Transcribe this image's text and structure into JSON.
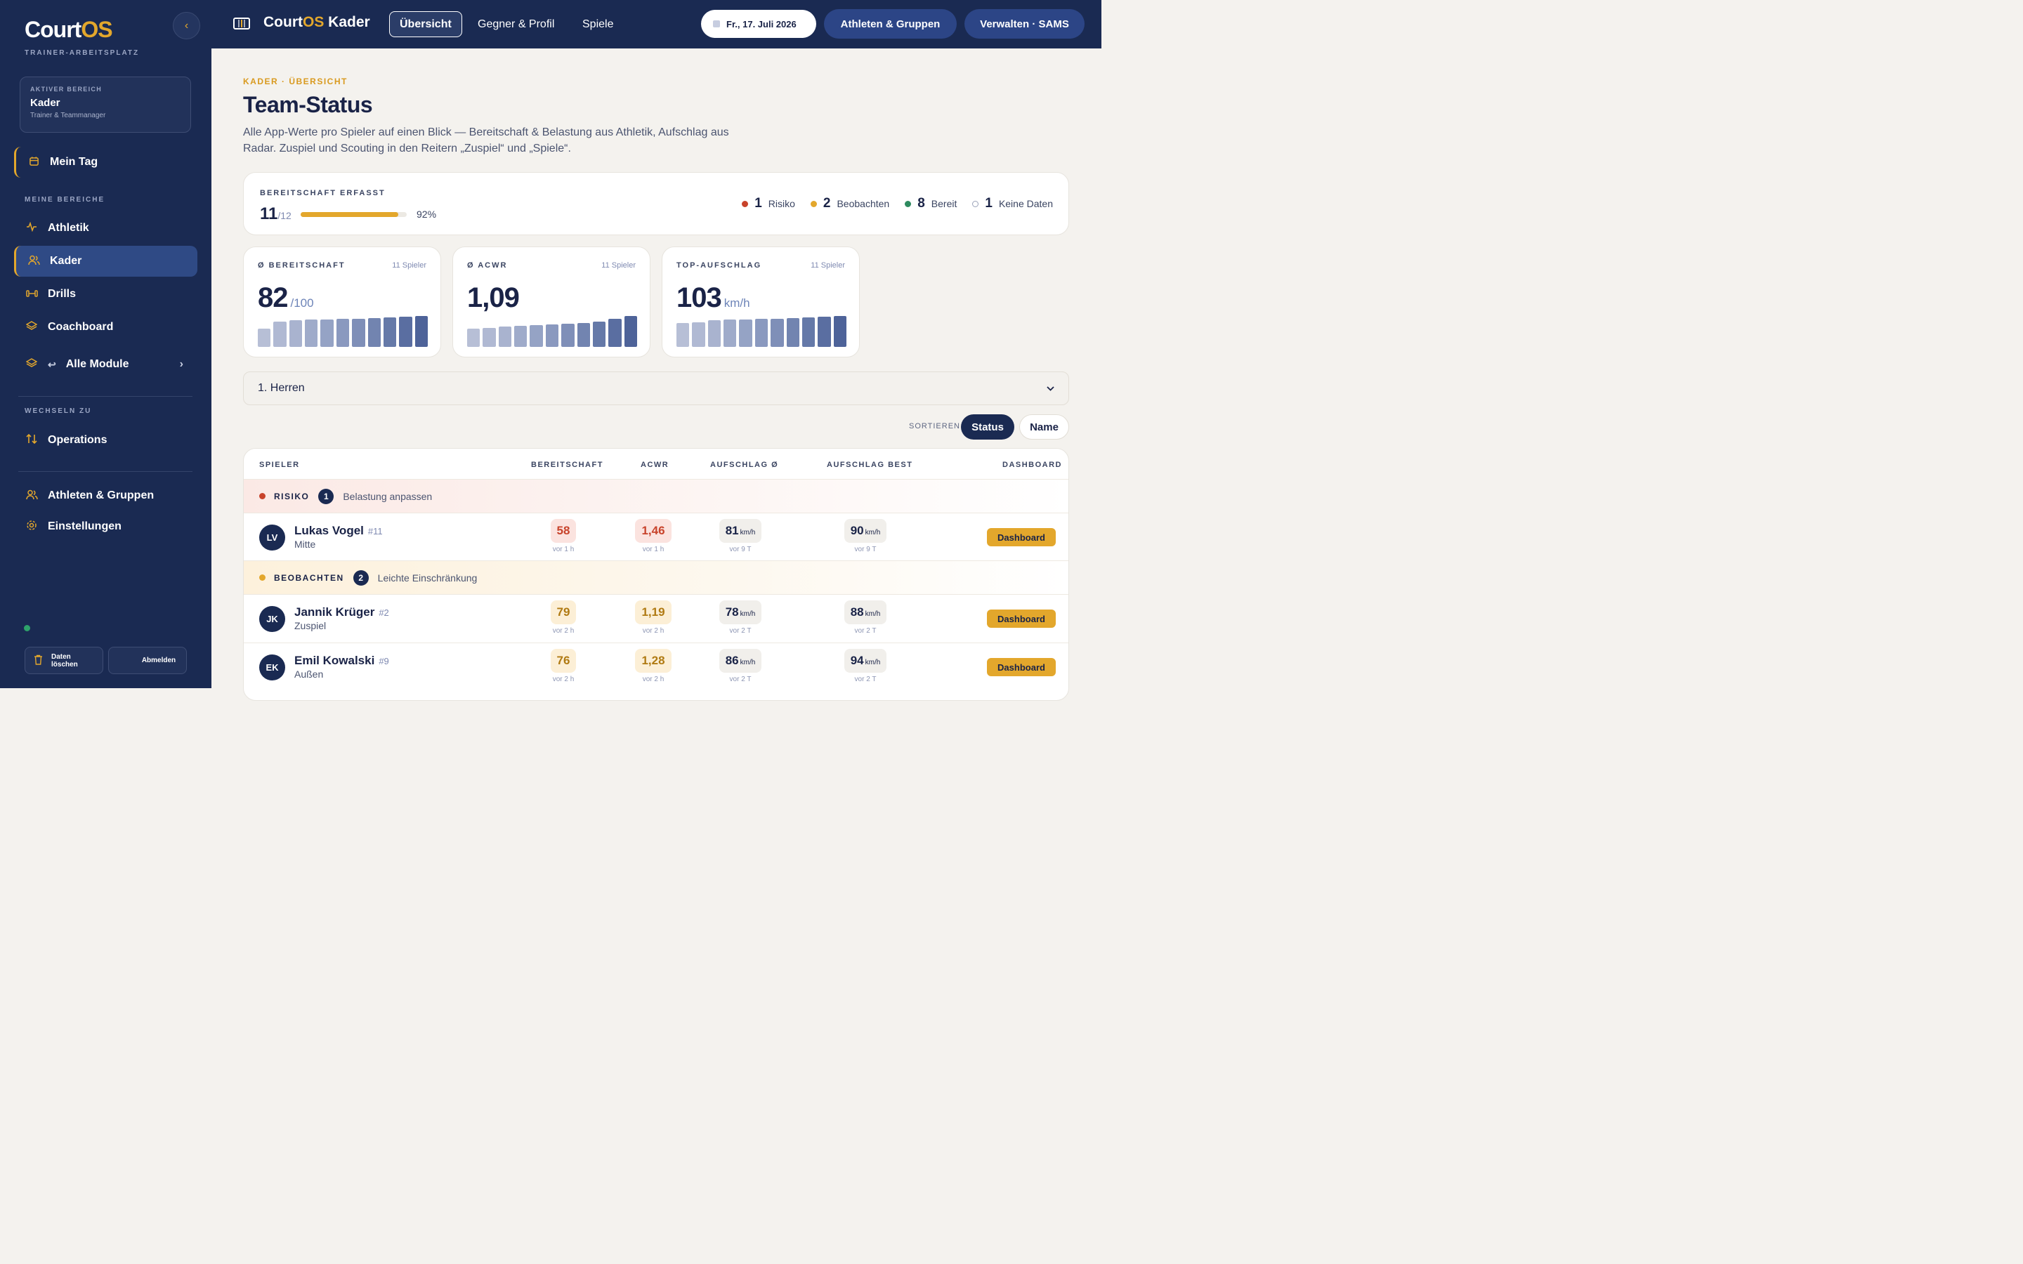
{
  "sidebar": {
    "logo_a": "Court",
    "logo_b": "OS",
    "logo_sub": "TRAINER-ARBEITSPLATZ",
    "collapse_icon": "‹",
    "area_label": "AKTIVER BEREICH",
    "area_value": "Kader",
    "area_sub": "Trainer & Teammanager",
    "mein_tag": "Mein Tag",
    "section_mine": "MEINE BEREICHE",
    "items": [
      "Athletik",
      "Kader",
      "Drills",
      "Coachboard",
      "Alle Module"
    ],
    "section_switch": "WECHSELN ZU",
    "operations": "Operations",
    "athletes_groups": "Athleten & Gruppen",
    "settings": "Einstellungen",
    "clear_data": "Daten löschen",
    "logout": "Abmelden"
  },
  "topbar": {
    "title_a": "Court",
    "title_b": "OS",
    "title_c": " Kader",
    "tabs": [
      "Übersicht",
      "Gegner & Profil",
      "Spiele"
    ],
    "date": "Fr., 17. Juli 2026",
    "athletes_btn": "Athleten & Gruppen",
    "manage_btn": "Verwalten · SAMS"
  },
  "page": {
    "eyebrow": "KADER · ÜBERSICHT",
    "title": "Team-Status",
    "description": "Alle App-Werte pro Spieler auf einen Blick — Bereitschaft & Belastung aus Athletik, Aufschlag aus Radar. Zuspiel und Scouting in den Reitern „Zuspiel“ und „Spiele“."
  },
  "readiness": {
    "label": "BEREITSCHAFT ERFASST",
    "count": "11",
    "total": "/12",
    "percent_value": 92,
    "percent_text": "92%",
    "legend": [
      {
        "count": "1",
        "label": "Risiko",
        "color": "#c8432b"
      },
      {
        "count": "2",
        "label": "Beobachten",
        "color": "#e3a72c"
      },
      {
        "count": "8",
        "label": "Bereit",
        "color": "#2e8a5f"
      },
      {
        "count": "1",
        "label": "Keine Daten",
        "color": "#b9bfcf"
      }
    ]
  },
  "stats": [
    {
      "label": "Ø BEREITSCHAFT",
      "count": "11 Spieler",
      "value": "82",
      "unit": "/100",
      "bars": [
        0.6,
        0.82,
        0.86,
        0.88,
        0.89,
        0.9,
        0.92,
        0.94,
        0.95,
        0.97,
        1.0
      ]
    },
    {
      "label": "Ø ACWR",
      "count": "11 Spieler",
      "value": "1,09",
      "unit": "",
      "bars": [
        0.6,
        0.62,
        0.66,
        0.68,
        0.7,
        0.72,
        0.74,
        0.78,
        0.82,
        0.9,
        1.0
      ]
    },
    {
      "label": "TOP-AUFSCHLAG",
      "count": "11 Spieler",
      "value": "103",
      "unit": "km/h",
      "bars": [
        0.78,
        0.8,
        0.86,
        0.88,
        0.89,
        0.9,
        0.92,
        0.93,
        0.95,
        0.97,
        1.0
      ]
    }
  ],
  "team_select": "1. Herren",
  "sort": {
    "label": "SORTIEREN",
    "status": "Status",
    "name": "Name"
  },
  "table": {
    "headers": [
      "SPIELER",
      "BEREITSCHAFT",
      "ACWR",
      "AUFSCHLAG Ø",
      "AUFSCHLAG BEST",
      "DASHBOARD"
    ],
    "groups": [
      {
        "label": "RISIKO",
        "count": "1",
        "text": "Belastung anpassen"
      },
      {
        "label": "BEOBACHTEN",
        "count": "2",
        "text": "Leichte Einschränkung"
      }
    ],
    "dashboard_label": "Dashboard",
    "unit_kmh": "km/h",
    "players": [
      {
        "initials": "LV",
        "name": "Lukas Vogel",
        "number": "#11",
        "position": "Mitte",
        "ready": "58",
        "ready_t": "vor 1 h",
        "acwr": "1,46",
        "acwr_t": "vor 1 h",
        "serve_avg": "81",
        "serve_avg_t": "vor 9 T",
        "serve_best": "90",
        "serve_best_t": "vor 9 T"
      },
      {
        "initials": "JK",
        "name": "Jannik Krüger",
        "number": "#2",
        "position": "Zuspiel",
        "ready": "79",
        "ready_t": "vor 2 h",
        "acwr": "1,19",
        "acwr_t": "vor 2 h",
        "serve_avg": "78",
        "serve_avg_t": "vor 2 T",
        "serve_best": "88",
        "serve_best_t": "vor 2 T"
      },
      {
        "initials": "EK",
        "name": "Emil Kowalski",
        "number": "#9",
        "position": "Außen",
        "ready": "76",
        "ready_t": "vor 2 h",
        "acwr": "1,28",
        "acwr_t": "vor 2 h",
        "serve_avg": "86",
        "serve_avg_t": "vor 2 T",
        "serve_best": "94",
        "serve_best_t": "vor 2 T"
      }
    ]
  }
}
